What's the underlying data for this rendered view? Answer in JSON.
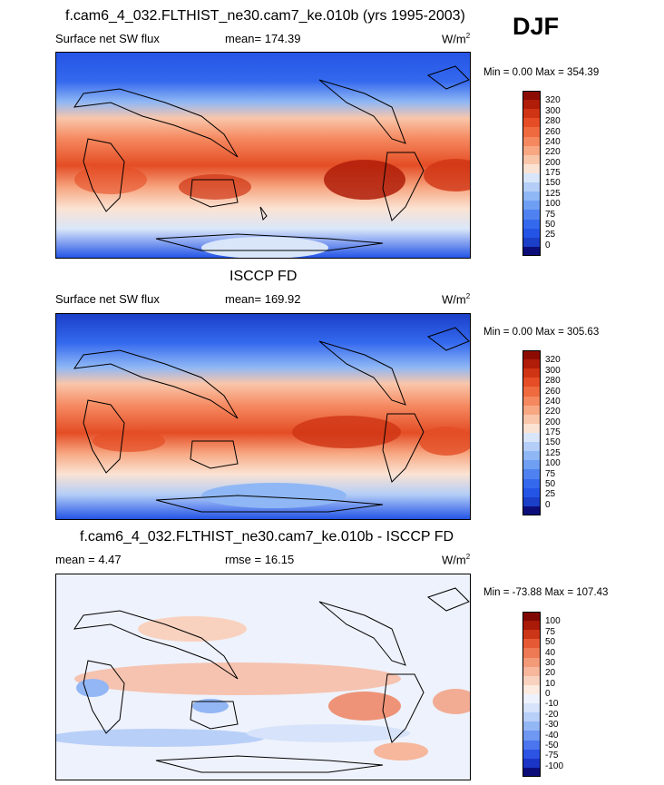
{
  "season": "DJF",
  "colors": {
    "positive_scale": [
      "#0d0d7a",
      "#1b3fc9",
      "#2454e6",
      "#3469ee",
      "#4f82f0",
      "#6f9ff3",
      "#8fb7f5",
      "#b4cef7",
      "#d9e6fa",
      "#fbe3d3",
      "#f9c6aa",
      "#f7a883",
      "#f5885f",
      "#ef6a3f",
      "#e44d25",
      "#cf3414",
      "#b01d09",
      "#8c0c03"
    ],
    "diff_scale": [
      "#0d0d7a",
      "#1a35c6",
      "#2d53e5",
      "#4a75ef",
      "#6e98f2",
      "#93b6f5",
      "#b8cff8",
      "#d6e3fa",
      "#eef2fc",
      "#fcebe1",
      "#f9d2bf",
      "#f6b79c",
      "#f39a79",
      "#ee7a55",
      "#e55a34",
      "#cc3618",
      "#a91a08",
      "#7f0902"
    ]
  },
  "chart_data": [
    {
      "type": "heatmap",
      "id": "model",
      "title": "f.cam6_4_032.FLTHIST_ne30.cam7_ke.010b (yrs 1995-2003)",
      "left_label": "Surface net SW flux",
      "stat_label": "mean= 174.39",
      "units": "W/m",
      "units_sup": "2",
      "minmax": "Min =   0.00 Max = 354.39",
      "colorbar_ticks": [
        "320",
        "300",
        "280",
        "260",
        "240",
        "220",
        "200",
        "175",
        "150",
        "125",
        "100",
        "75",
        "50",
        "25",
        "0"
      ]
    },
    {
      "type": "heatmap",
      "id": "obs",
      "title": "ISCCP FD",
      "left_label": "Surface net SW flux",
      "stat_label": "mean= 169.92",
      "units": "W/m",
      "units_sup": "2",
      "minmax": "Min =   0.00 Max = 305.63",
      "colorbar_ticks": [
        "320",
        "300",
        "280",
        "260",
        "240",
        "220",
        "200",
        "175",
        "150",
        "125",
        "100",
        "75",
        "50",
        "25",
        "0"
      ]
    },
    {
      "type": "heatmap",
      "id": "diff",
      "title": "f.cam6_4_032.FLTHIST_ne30.cam7_ke.010b - ISCCP FD",
      "left_label": "mean =   4.47",
      "stat_label": "rmse =  16.15",
      "units": "W/m",
      "units_sup": "2",
      "minmax": "Min = -73.88 Max = 107.43",
      "colorbar_ticks": [
        "100",
        "75",
        "50",
        "40",
        "30",
        "20",
        "10",
        "0",
        "-10",
        "-20",
        "-30",
        "-40",
        "-50",
        "-75",
        "-100"
      ]
    }
  ]
}
